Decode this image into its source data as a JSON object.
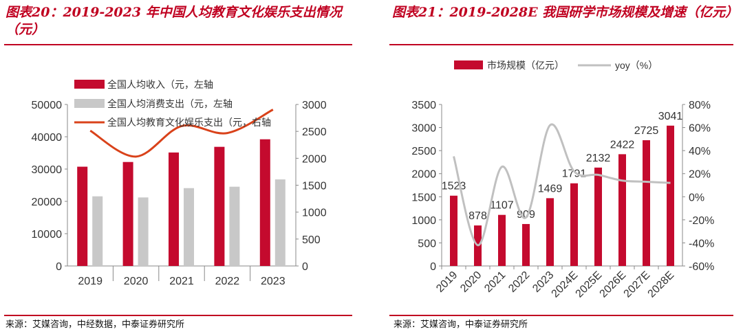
{
  "left": {
    "title": "图表20：2019-2023 年中国人均教育文化娱乐支出情况（元）",
    "source": "来源：艾媒咨询，中经数据，中泰证券研究所"
  },
  "right": {
    "title": "图表21：2019-2028E 我国研学市场规模及增速（亿元）",
    "source": "来源：艾媒咨询，中泰证券研究所"
  },
  "colors": {
    "accent": "#c00020",
    "bar_red": "#c40a2e",
    "bar_gray": "#c8c8c8",
    "line_orange": "#d9421a",
    "line_gray": "#c0c0c0"
  },
  "chart_data": [
    {
      "type": "bar",
      "categories": [
        "2019",
        "2020",
        "2021",
        "2022",
        "2023"
      ],
      "series": [
        {
          "name": "全国人均收入（元，左轴",
          "values": [
            30733,
            32189,
            35128,
            36883,
            39218
          ],
          "axis": "left",
          "kind": "bar"
        },
        {
          "name": "全国人均消费支出（元，左轴",
          "values": [
            21559,
            21210,
            24100,
            24538,
            26796
          ],
          "axis": "left",
          "kind": "bar"
        },
        {
          "name": "全国人均教育文化娱乐支出（元，右轴",
          "values": [
            2513,
            2032,
            2599,
            2469,
            2904
          ],
          "axis": "right",
          "kind": "line"
        }
      ],
      "ylim_left": [
        0,
        50000
      ],
      "ylim_right": [
        0,
        3000
      ],
      "yticks_left": [
        "0",
        "10000",
        "20000",
        "30000",
        "40000",
        "50000"
      ],
      "yticks_right": [
        "0",
        "500",
        "1000",
        "1500",
        "2000",
        "2500",
        "3000"
      ],
      "legend": "top-left"
    },
    {
      "type": "bar",
      "categories": [
        "2019",
        "2020",
        "2021",
        "2022",
        "2023",
        "2024E",
        "2025E",
        "2026E",
        "2027E",
        "2028E"
      ],
      "series": [
        {
          "name": "市场规模（亿元）",
          "values": [
            1523,
            878,
            1107,
            909,
            1469,
            1791,
            2132,
            2422,
            2725,
            3041
          ],
          "axis": "left",
          "kind": "bar",
          "labels": [
            "1523",
            "878",
            "1107",
            "909",
            "1469",
            "1791",
            "2132",
            "2422",
            "2725",
            "3041"
          ]
        },
        {
          "name": "yoy（%）",
          "values": [
            35,
            -42,
            26,
            -18,
            62,
            22,
            19,
            14,
            13,
            12
          ],
          "axis": "right",
          "kind": "line"
        }
      ],
      "ylim_left": [
        0,
        3500
      ],
      "ylim_right": [
        -60,
        80
      ],
      "yticks_left": [
        "0",
        "500",
        "1000",
        "1500",
        "2000",
        "2500",
        "3000",
        "3500"
      ],
      "yticks_right": [
        "-60%",
        "-40%",
        "-20%",
        "0%",
        "20%",
        "40%",
        "60%",
        "80%"
      ],
      "legend": "top"
    }
  ]
}
